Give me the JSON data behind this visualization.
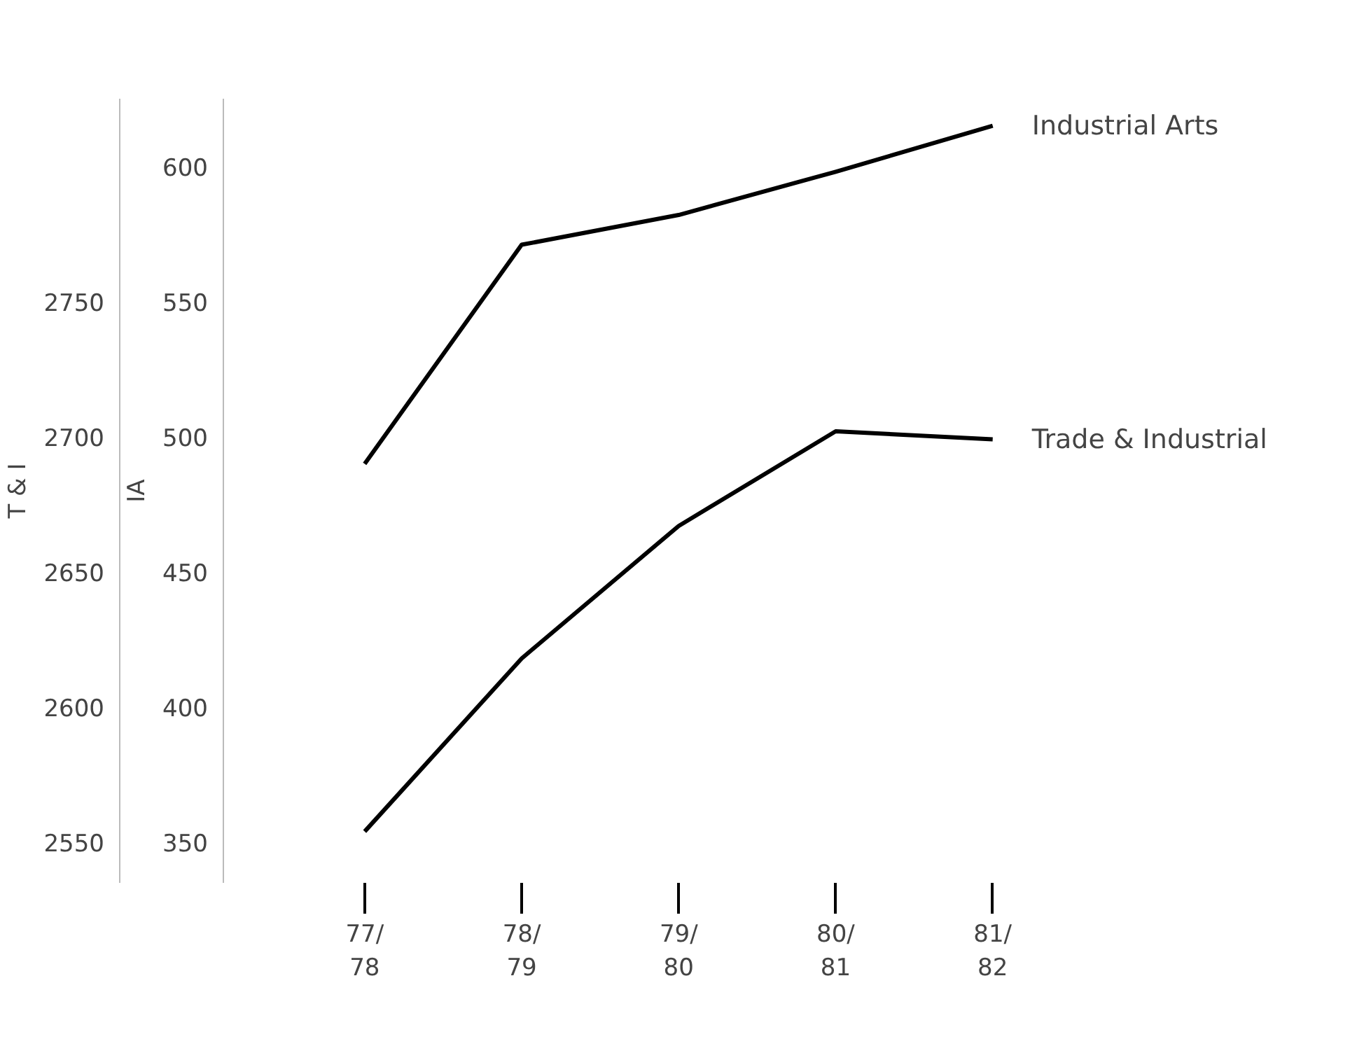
{
  "chart_data": {
    "type": "line",
    "categories": [
      "77/\n78",
      "78/\n79",
      "79/\n80",
      "80/\n81",
      "81/\n82"
    ],
    "ylabel": "IA",
    "y2label": "T & I",
    "ylim": [
      335,
      625
    ],
    "yticks": [
      350,
      400,
      450,
      500,
      550,
      600
    ],
    "y2lim": [
      2535,
      2825
    ],
    "y2ticks": [
      2550,
      2600,
      2650,
      2700,
      2750
    ],
    "series": [
      {
        "name": "Industrial Arts",
        "color": "#000000",
        "values": [
          490,
          571,
          582,
          598,
          615
        ]
      },
      {
        "name": "Trade & Industrial",
        "color": "#000000",
        "axis": "y2",
        "values": [
          2554,
          2618,
          2667,
          2702,
          2699
        ]
      }
    ],
    "grid": false,
    "marker": "none",
    "line_style": "solid"
  }
}
